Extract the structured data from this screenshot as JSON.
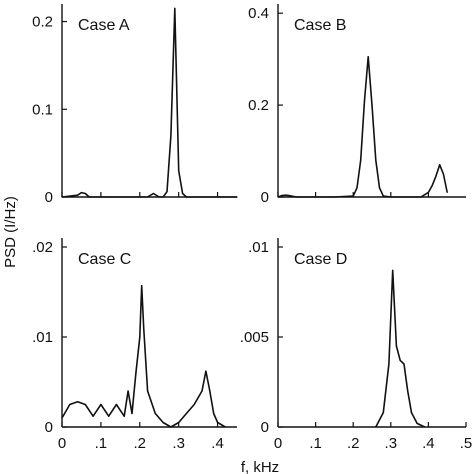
{
  "ylabel": "PSD (I/Hz)",
  "xlabel": "f, kHz",
  "chart_data": [
    {
      "type": "line",
      "title": "Case A",
      "xlim": [
        0,
        0.45
      ],
      "ylim": [
        0,
        0.22
      ],
      "yticks": [
        {
          "v": 0,
          "label": "0"
        },
        {
          "v": 0.1,
          "label": "0.1"
        },
        {
          "v": 0.2,
          "label": "0.2"
        }
      ],
      "xticks": [
        0,
        0.1,
        0.2,
        0.3,
        0.4
      ],
      "x": [
        0.0,
        0.04,
        0.05,
        0.06,
        0.07,
        0.12,
        0.2,
        0.22,
        0.235,
        0.25,
        0.26,
        0.27,
        0.28,
        0.29,
        0.3,
        0.31,
        0.32,
        0.33,
        0.35,
        0.4,
        0.45
      ],
      "y": [
        0.0,
        0.002,
        0.005,
        0.004,
        0.0,
        0.0,
        0.0,
        0.0,
        0.004,
        0.0,
        0.0,
        0.006,
        0.07,
        0.215,
        0.03,
        0.004,
        0.0,
        0.0,
        0.0,
        0.0,
        0.0
      ]
    },
    {
      "type": "line",
      "title": "Case B",
      "xlim": [
        0,
        0.5
      ],
      "ylim": [
        0,
        0.42
      ],
      "yticks": [
        {
          "v": 0,
          "label": "0"
        },
        {
          "v": 0.2,
          "label": "0.2"
        },
        {
          "v": 0.4,
          "label": "0.4"
        }
      ],
      "xticks": [
        0,
        0.1,
        0.2,
        0.3,
        0.4
      ],
      "x": [
        0.0,
        0.01,
        0.02,
        0.03,
        0.05,
        0.1,
        0.15,
        0.2,
        0.21,
        0.22,
        0.23,
        0.24,
        0.25,
        0.26,
        0.27,
        0.28,
        0.3,
        0.35,
        0.38,
        0.4,
        0.41,
        0.42,
        0.43,
        0.44,
        0.45
      ],
      "y": [
        0.0,
        0.003,
        0.004,
        0.003,
        0.0,
        0.0,
        0.0,
        0.002,
        0.02,
        0.08,
        0.21,
        0.305,
        0.2,
        0.08,
        0.02,
        0.002,
        0.0,
        0.0,
        0.0,
        0.01,
        0.025,
        0.045,
        0.07,
        0.05,
        0.01
      ]
    },
    {
      "type": "line",
      "title": "Case C",
      "xlim": [
        0,
        0.45
      ],
      "ylim": [
        0,
        0.021
      ],
      "yticks": [
        {
          "v": 0,
          "label": "0"
        },
        {
          "v": 0.01,
          "label": ".01"
        },
        {
          "v": 0.02,
          "label": ".02"
        }
      ],
      "xticks": [
        {
          "v": 0,
          "label": "0"
        },
        {
          "v": 0.1,
          "label": ".1"
        },
        {
          "v": 0.2,
          "label": ".2"
        },
        {
          "v": 0.3,
          "label": ".3"
        },
        {
          "v": 0.4,
          "label": ".4"
        }
      ],
      "x": [
        0.0,
        0.02,
        0.04,
        0.06,
        0.08,
        0.1,
        0.12,
        0.14,
        0.16,
        0.17,
        0.18,
        0.19,
        0.2,
        0.205,
        0.21,
        0.22,
        0.24,
        0.26,
        0.28,
        0.3,
        0.32,
        0.34,
        0.36,
        0.37,
        0.38,
        0.39,
        0.4,
        0.42
      ],
      "y": [
        0.001,
        0.0025,
        0.0028,
        0.0025,
        0.0012,
        0.0025,
        0.0012,
        0.0025,
        0.0012,
        0.004,
        0.0015,
        0.006,
        0.01,
        0.0157,
        0.011,
        0.004,
        0.0015,
        0.0005,
        0.0,
        0.0005,
        0.0015,
        0.0025,
        0.004,
        0.0062,
        0.004,
        0.0015,
        0.0005,
        0.0
      ]
    },
    {
      "type": "line",
      "title": "Case D",
      "xlim": [
        0,
        0.5
      ],
      "ylim": [
        0,
        0.0105
      ],
      "yticks": [
        {
          "v": 0,
          "label": "0"
        },
        {
          "v": 0.005,
          "label": ".005"
        },
        {
          "v": 0.01,
          "label": ".01"
        }
      ],
      "xticks": [
        {
          "v": 0,
          "label": "0"
        },
        {
          "v": 0.1,
          "label": ".1"
        },
        {
          "v": 0.2,
          "label": ".2"
        },
        {
          "v": 0.3,
          "label": ".3"
        },
        {
          "v": 0.4,
          "label": ".4"
        },
        {
          "v": 0.5,
          "label": ".5"
        }
      ],
      "x": [
        0.26,
        0.28,
        0.295,
        0.305,
        0.315,
        0.325,
        0.335,
        0.345,
        0.355,
        0.37,
        0.39
      ],
      "y": [
        0.0,
        0.0008,
        0.0035,
        0.0087,
        0.0045,
        0.0037,
        0.0035,
        0.002,
        0.0008,
        0.0002,
        0.0
      ]
    }
  ]
}
